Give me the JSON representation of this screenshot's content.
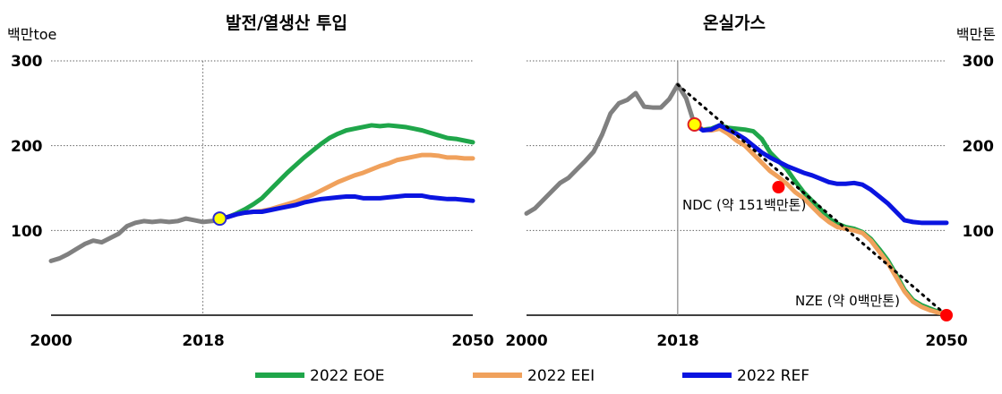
{
  "chart_data": [
    {
      "type": "line",
      "title": "발전/열생산 투입",
      "unit_label": "백만toe",
      "xlim": [
        2000,
        2050
      ],
      "ylim": [
        0,
        300
      ],
      "x_ticks": [
        "2000",
        "2018",
        "2050"
      ],
      "y_ticks": [
        "100",
        "200",
        "300"
      ],
      "ref_year": 2018,
      "series": [
        {
          "name": "history",
          "color": "#808080",
          "x": [
            2000,
            2001,
            2002,
            2003,
            2004,
            2005,
            2006,
            2007,
            2008,
            2009,
            2010,
            2011,
            2012,
            2013,
            2014,
            2015,
            2016,
            2017,
            2018,
            2019,
            2020
          ],
          "y": [
            64,
            67,
            72,
            78,
            84,
            88,
            86,
            91,
            96,
            105,
            109,
            111,
            110,
            111,
            110,
            111,
            114,
            112,
            110,
            111,
            112
          ]
        },
        {
          "name": "2022 EOE",
          "color": "#1fa64a",
          "x": [
            2020,
            2021,
            2022,
            2023,
            2024,
            2025,
            2026,
            2027,
            2028,
            2029,
            2030,
            2031,
            2032,
            2033,
            2034,
            2035,
            2036,
            2037,
            2038,
            2039,
            2040,
            2041,
            2042,
            2043,
            2044,
            2045,
            2046,
            2047,
            2048,
            2049,
            2050
          ],
          "y": [
            114,
            116,
            120,
            125,
            131,
            138,
            148,
            158,
            168,
            177,
            186,
            194,
            202,
            209,
            214,
            218,
            220,
            222,
            224,
            223,
            224,
            223,
            222,
            220,
            218,
            215,
            212,
            209,
            208,
            206,
            204
          ]
        },
        {
          "name": "2022 EEI",
          "color": "#f0a15c",
          "x": [
            2020,
            2021,
            2022,
            2023,
            2024,
            2025,
            2026,
            2027,
            2028,
            2029,
            2030,
            2031,
            2032,
            2033,
            2034,
            2035,
            2036,
            2037,
            2038,
            2039,
            2040,
            2041,
            2042,
            2043,
            2044,
            2045,
            2046,
            2047,
            2048,
            2049,
            2050
          ],
          "y": [
            114,
            116,
            119,
            121,
            122,
            123,
            125,
            128,
            131,
            134,
            138,
            142,
            147,
            152,
            157,
            161,
            165,
            168,
            172,
            176,
            179,
            183,
            185,
            187,
            189,
            189,
            188,
            186,
            186,
            185,
            185
          ]
        },
        {
          "name": "2022 REF",
          "color": "#0a14e0",
          "x": [
            2020,
            2021,
            2022,
            2023,
            2024,
            2025,
            2026,
            2027,
            2028,
            2029,
            2030,
            2031,
            2032,
            2033,
            2034,
            2035,
            2036,
            2037,
            2038,
            2039,
            2040,
            2041,
            2042,
            2043,
            2044,
            2045,
            2046,
            2047,
            2048,
            2049,
            2050
          ],
          "y": [
            114,
            116,
            119,
            121,
            122,
            122,
            124,
            126,
            128,
            130,
            133,
            135,
            137,
            138,
            139,
            140,
            140,
            138,
            138,
            138,
            139,
            140,
            141,
            141,
            141,
            139,
            138,
            137,
            137,
            136,
            135
          ]
        }
      ],
      "markers": [
        {
          "x": 2020,
          "y": 114,
          "fill": "#ffff00",
          "stroke": "#2a2ad0"
        }
      ]
    },
    {
      "type": "line",
      "title": "온실가스",
      "unit_label": "백만톤",
      "xlim": [
        2000,
        2050
      ],
      "ylim": [
        0,
        300
      ],
      "x_ticks": [
        "2000",
        "2018",
        "2050"
      ],
      "y_ticks": [
        "100",
        "200",
        "300"
      ],
      "ref_year": 2018,
      "series": [
        {
          "name": "history",
          "color": "#808080",
          "x": [
            2000,
            2001,
            2002,
            2003,
            2004,
            2005,
            2006,
            2007,
            2008,
            2009,
            2010,
            2011,
            2012,
            2013,
            2014,
            2015,
            2016,
            2017,
            2018,
            2019,
            2020
          ],
          "y": [
            120,
            126,
            136,
            146,
            156,
            162,
            172,
            182,
            193,
            213,
            238,
            250,
            254,
            262,
            246,
            245,
            245,
            255,
            272,
            256,
            225
          ]
        },
        {
          "name": "2022 EOE",
          "color": "#1fa64a",
          "x": [
            2020,
            2021,
            2022,
            2023,
            2024,
            2025,
            2026,
            2027,
            2028,
            2029,
            2030,
            2031,
            2032,
            2033,
            2034,
            2035,
            2036,
            2037,
            2038,
            2039,
            2040,
            2041,
            2042,
            2043,
            2044,
            2045,
            2046,
            2047,
            2048,
            2049,
            2050
          ],
          "y": [
            225,
            219,
            220,
            224,
            221,
            220,
            219,
            217,
            208,
            192,
            182,
            172,
            158,
            145,
            135,
            125,
            114,
            108,
            104,
            102,
            98,
            90,
            78,
            65,
            48,
            30,
            18,
            12,
            8,
            4,
            2
          ]
        },
        {
          "name": "2022 EEI",
          "color": "#f0a15c",
          "x": [
            2020,
            2021,
            2022,
            2023,
            2024,
            2025,
            2026,
            2027,
            2028,
            2029,
            2030,
            2031,
            2032,
            2033,
            2034,
            2035,
            2036,
            2037,
            2038,
            2039,
            2040,
            2041,
            2042,
            2043,
            2044,
            2045,
            2046,
            2047,
            2048,
            2049,
            2050
          ],
          "y": [
            225,
            219,
            218,
            220,
            214,
            206,
            200,
            190,
            180,
            170,
            163,
            155,
            145,
            138,
            128,
            118,
            110,
            104,
            102,
            100,
            97,
            88,
            75,
            62,
            45,
            28,
            16,
            10,
            6,
            3,
            2
          ]
        },
        {
          "name": "2022 REF",
          "color": "#0a14e0",
          "x": [
            2020,
            2021,
            2022,
            2023,
            2024,
            2025,
            2026,
            2027,
            2028,
            2029,
            2030,
            2031,
            2032,
            2033,
            2034,
            2035,
            2036,
            2037,
            2038,
            2039,
            2040,
            2041,
            2042,
            2043,
            2044,
            2045,
            2046,
            2047,
            2048,
            2049,
            2050
          ],
          "y": [
            225,
            218,
            219,
            224,
            219,
            214,
            208,
            200,
            192,
            186,
            181,
            176,
            172,
            168,
            165,
            161,
            157,
            155,
            155,
            156,
            154,
            148,
            140,
            132,
            122,
            112,
            110,
            109,
            109,
            109,
            109
          ]
        }
      ],
      "target_line": {
        "x": [
          2018,
          2050
        ],
        "y": [
          272,
          0
        ],
        "style": "dotted"
      },
      "markers": [
        {
          "x": 2020,
          "y": 225,
          "fill": "#ffff00",
          "stroke": "#e02020"
        },
        {
          "x": 2030,
          "y": 151,
          "fill": "#ff0000",
          "stroke": "#ff0000"
        },
        {
          "x": 2050,
          "y": 0,
          "fill": "#ff0000",
          "stroke": "#ff0000"
        }
      ],
      "annotations": [
        {
          "text": "NDC (약 151백만톤)"
        },
        {
          "text": "NZE (약 0백만톤)"
        }
      ]
    }
  ],
  "legend": [
    {
      "label": "2022 EOE",
      "color": "#1fa64a"
    },
    {
      "label": "2022 EEI",
      "color": "#f0a15c"
    },
    {
      "label": "2022 REF",
      "color": "#0a14e0"
    }
  ]
}
